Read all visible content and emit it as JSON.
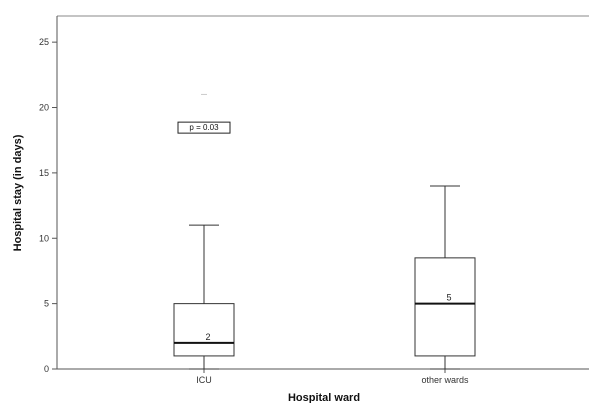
{
  "chart_data": {
    "type": "box",
    "xlabel": "Hospital ward",
    "ylabel": "Hospital stay (in days)",
    "ylim": [
      0,
      27
    ],
    "yticks": [
      0,
      5,
      10,
      15,
      20,
      25
    ],
    "categories": [
      "ICU",
      "other wards"
    ],
    "boxes": [
      {
        "category": "ICU",
        "whisker_low": 0,
        "q1": 1,
        "median": 2,
        "q3": 5,
        "whisker_high": 11,
        "outliers": [
          21
        ],
        "median_label": "2"
      },
      {
        "category": "other wards",
        "whisker_low": 0,
        "q1": 1,
        "median": 5,
        "q3": 8.5,
        "whisker_high": 14,
        "outliers": [],
        "median_label": "5"
      }
    ],
    "annotation": {
      "text": "p = 0.03",
      "x_category": "ICU",
      "y": 18.5
    },
    "grid": false,
    "legend": "none"
  }
}
